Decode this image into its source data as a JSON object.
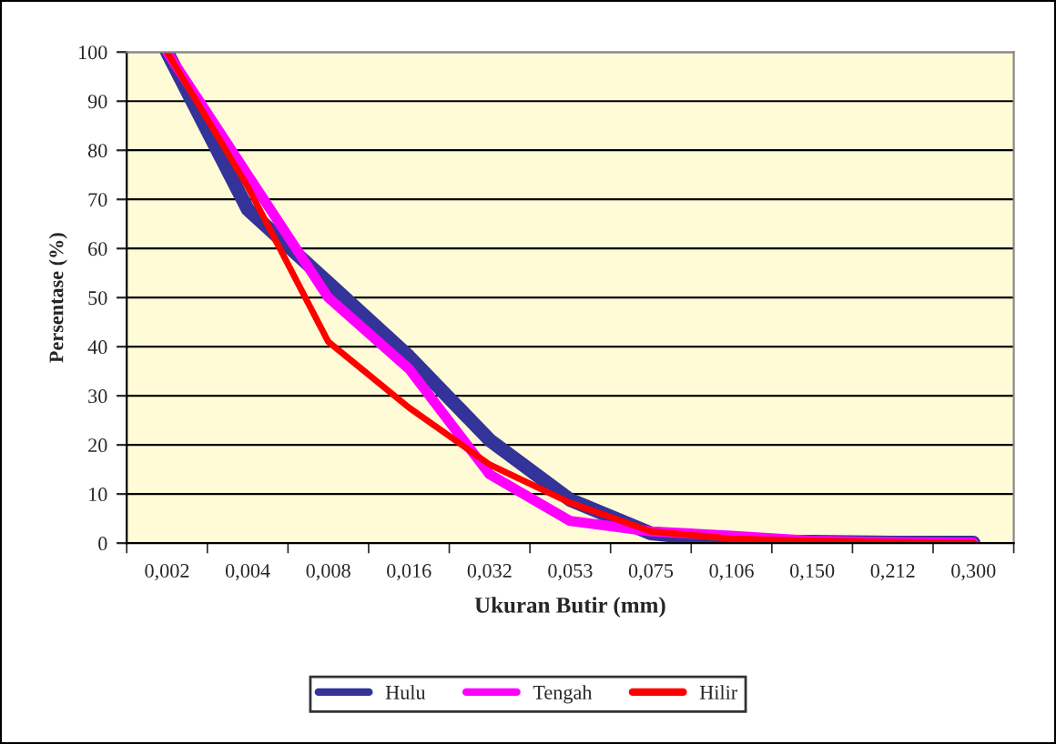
{
  "chart_data": {
    "type": "line",
    "xlabel": "Ukuran Butir (mm)",
    "ylabel": "Persentase (%)",
    "categories": [
      "0,002",
      "0,004",
      "0,008",
      "0,016",
      "0,032",
      "0,053",
      "0,075",
      "0,106",
      "0,150",
      "0,212",
      "0,300"
    ],
    "series": [
      {
        "name": "Hulu",
        "color": "#333399",
        "values": [
          100,
          68,
          53,
          38,
          21,
          8.8,
          2,
          0.3,
          0.3,
          0.1,
          0.1
        ]
      },
      {
        "name": "Tengah",
        "color": "#ff00ff",
        "values": [
          100,
          75,
          50,
          35.5,
          14,
          4.5,
          2.4,
          1.5,
          0.5,
          0.2,
          0.1
        ]
      },
      {
        "name": "Hilir",
        "color": "#ff0000",
        "values": [
          100,
          72.6,
          41,
          27.6,
          16,
          8.2,
          2.4,
          0.9,
          0.5,
          0.2,
          0.1
        ]
      }
    ],
    "ylim": [
      0,
      100
    ],
    "yticks": [
      0,
      10,
      20,
      30,
      40,
      50,
      60,
      70,
      80,
      90,
      100
    ],
    "grid": "y",
    "legend": "bottom",
    "marker": "none",
    "line_style": "solid"
  }
}
